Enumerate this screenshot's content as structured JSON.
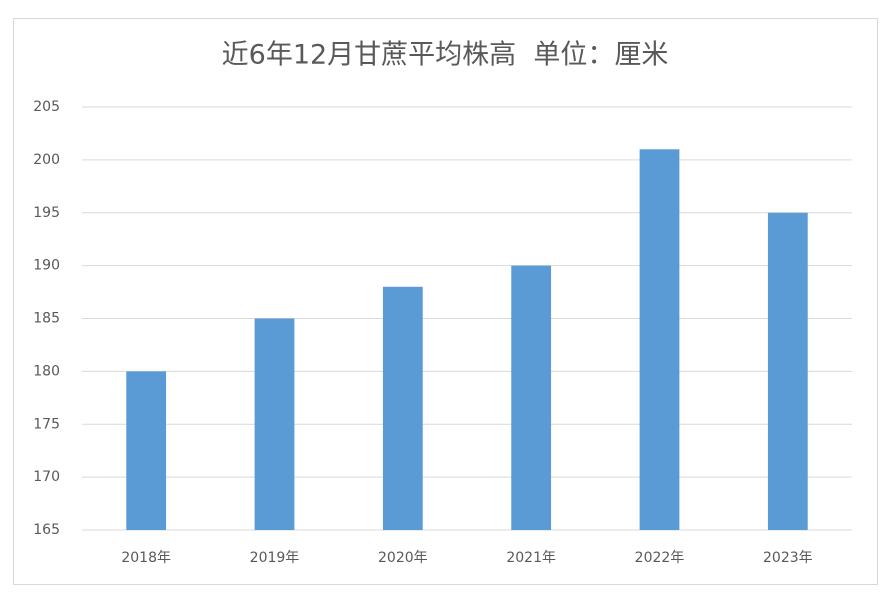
{
  "chart_data": {
    "type": "bar",
    "title": "近6年12月甘蔗平均株高  单位：厘米",
    "categories": [
      "2018年",
      "2019年",
      "2020年",
      "2021年",
      "2022年",
      "2023年"
    ],
    "values": [
      180,
      185,
      188,
      190,
      201,
      195
    ],
    "color": "#5b9bd5",
    "ylim": [
      165,
      205
    ],
    "yticks": [
      165,
      170,
      175,
      180,
      185,
      190,
      195,
      200,
      205
    ],
    "grid": true
  }
}
